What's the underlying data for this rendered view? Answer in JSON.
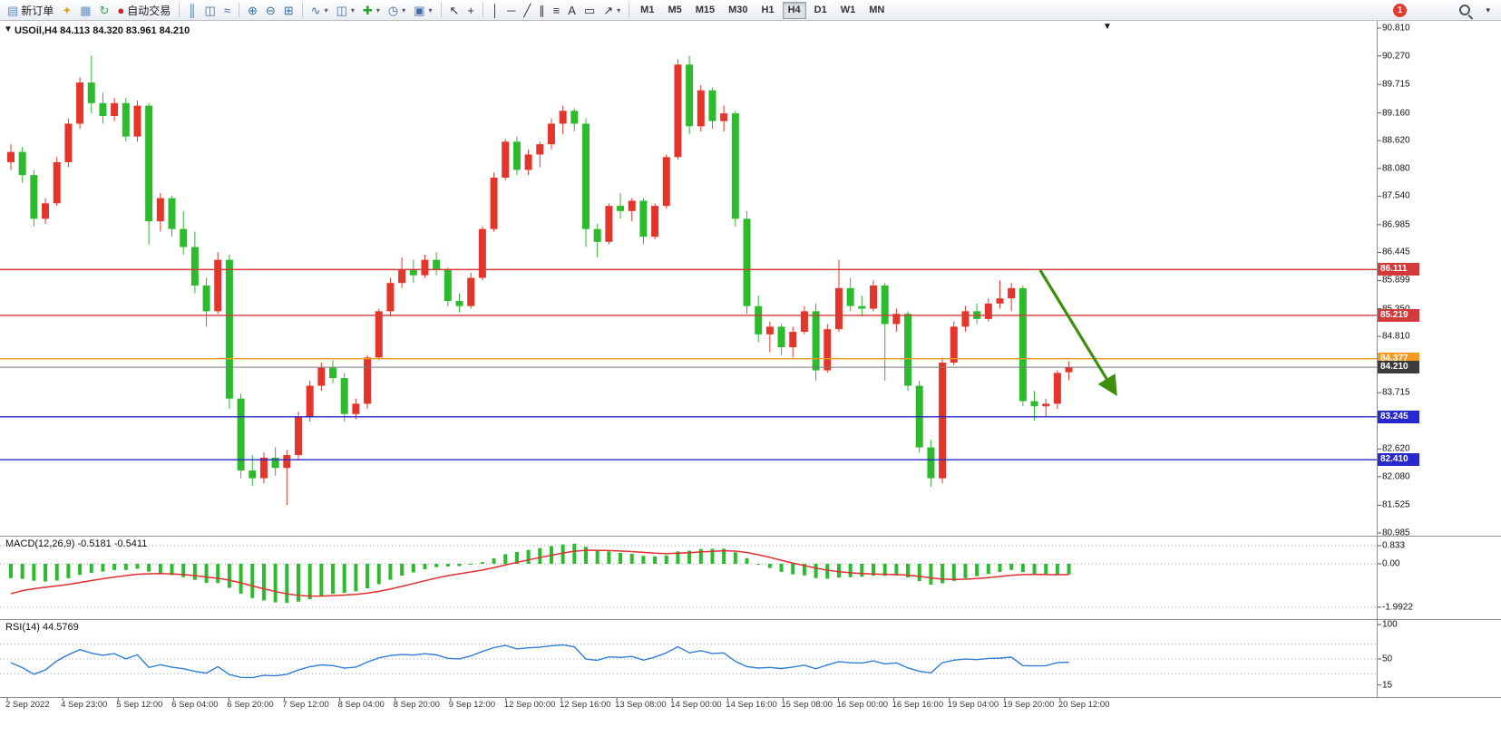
{
  "icons": {
    "dropdown_caret": "▾",
    "one_click": "▼",
    "shift_marker": "▼"
  },
  "toolbar": {
    "groups": [
      {
        "name": "trade-group",
        "items": [
          {
            "name": "new-order-button",
            "glyph": "▤",
            "glyph_color": "#5b8fd4",
            "label": "新订单"
          },
          {
            "name": "chart-window-icon-button",
            "glyph": "✦",
            "glyph_color": "#d9a62e"
          },
          {
            "name": "terminal-icon-button",
            "glyph": "▦",
            "glyph_color": "#5b8fd4"
          },
          {
            "name": "refresh-icon-button",
            "glyph": "↻",
            "glyph_color": "#3aa655"
          },
          {
            "name": "autotrading-button",
            "glyph": "●",
            "glyph_color": "#cc2222",
            "label": "自动交易"
          }
        ]
      },
      {
        "name": "chart-type-group",
        "items": [
          {
            "name": "bar-chart-button",
            "glyph": "║",
            "glyph_color": "#3a6ea5"
          },
          {
            "name": "candlestick-chart-button",
            "glyph": "◫",
            "glyph_color": "#3a6ea5"
          },
          {
            "name": "line-chart-button",
            "glyph": "≈",
            "glyph_color": "#3a6ea5"
          }
        ]
      },
      {
        "name": "zoom-group",
        "items": [
          {
            "name": "zoom-in-button",
            "glyph": "⊕",
            "glyph_color": "#3a6ea5"
          },
          {
            "name": "zoom-out-button",
            "glyph": "⊖",
            "glyph_color": "#3a6ea5"
          },
          {
            "name": "grid-button",
            "glyph": "⊞",
            "glyph_color": "#3a6ea5"
          }
        ]
      },
      {
        "name": "objects-group",
        "items": [
          {
            "name": "indicators-list-button",
            "glyph": "∿",
            "glyph_color": "#3a6ea5",
            "dropdown": true
          },
          {
            "name": "objects-list-button",
            "glyph": "◫",
            "glyph_color": "#3a6ea5",
            "dropdown": true
          },
          {
            "name": "add-indicator-button",
            "glyph": "✚",
            "glyph_color": "#2d9e2d",
            "dropdown": true
          },
          {
            "name": "periods-button",
            "glyph": "◷",
            "glyph_color": "#3a6ea5",
            "dropdown": true
          },
          {
            "name": "templates-button",
            "glyph": "▣",
            "glyph_color": "#3a6ea5",
            "dropdown": true
          }
        ]
      },
      {
        "name": "cursor-group",
        "items": [
          {
            "name": "cursor-button",
            "glyph": "↖",
            "glyph_color": "#333333"
          },
          {
            "name": "crosshair-button",
            "glyph": "+",
            "glyph_color": "#333333"
          }
        ]
      },
      {
        "name": "draw-group",
        "items": [
          {
            "name": "vertical-line-button",
            "glyph": "│",
            "glyph_color": "#333333"
          },
          {
            "name": "horizontal-line-button",
            "glyph": "─",
            "glyph_color": "#333333"
          },
          {
            "name": "trendline-button",
            "glyph": "╱",
            "glyph_color": "#333333"
          },
          {
            "name": "channel-button",
            "glyph": "∥",
            "glyph_color": "#333333"
          },
          {
            "name": "fibonacci-button",
            "glyph": "≡",
            "glyph_color": "#333333"
          },
          {
            "name": "text-button",
            "glyph": "A",
            "glyph_color": "#333333"
          },
          {
            "name": "shapes-button",
            "glyph": "▭",
            "glyph_color": "#333333"
          },
          {
            "name": "arrows-button",
            "glyph": "↗",
            "glyph_color": "#333333",
            "dropdown": true
          }
        ]
      }
    ],
    "timeframes": [
      "M1",
      "M5",
      "M15",
      "M30",
      "H1",
      "H4",
      "D1",
      "W1",
      "MN"
    ],
    "active_timeframe": "H4",
    "notification_badge": "1"
  },
  "chart": {
    "symbol_period": "USOil,H4",
    "ohlc_text": "84.113 84.320 83.961 84.210",
    "open": "84.113",
    "high": "84.320",
    "low": "83.961",
    "close": "84.210"
  },
  "chart_data": {
    "type": "candlestick",
    "title": "USOil,H4",
    "symbol": "USOil",
    "timeframe": "H4",
    "up_color": "#e5352a",
    "down_color": "#2cbb2c",
    "price_axis_labels": [
      "90.810",
      "90.270",
      "89.715",
      "89.160",
      "88.620",
      "88.080",
      "87.540",
      "86.985",
      "86.445",
      "85.899",
      "85.350",
      "84.810",
      "84.270",
      "83.715",
      "83.175",
      "82.620",
      "82.080",
      "81.525",
      "80.985"
    ],
    "time_labels": [
      "2 Sep 2022",
      "4 Sep 23:00",
      "5 Sep 12:00",
      "6 Sep 04:00",
      "6 Sep 20:00",
      "7 Sep 12:00",
      "8 Sep 04:00",
      "8 Sep 20:00",
      "9 Sep 12:00",
      "12 Sep 00:00",
      "12 Sep 16:00",
      "13 Sep 08:00",
      "14 Sep 00:00",
      "14 Sep 16:00",
      "15 Sep 08:00",
      "16 Sep 00:00",
      "16 Sep 16:00",
      "19 Sep 04:00",
      "19 Sep 20:00",
      "20 Sep 12:00"
    ],
    "candles": [
      [
        88.2,
        88.55,
        88.05,
        88.4
      ],
      [
        88.4,
        88.5,
        87.8,
        87.95
      ],
      [
        87.95,
        88.05,
        86.95,
        87.1
      ],
      [
        87.1,
        87.5,
        87.0,
        87.4
      ],
      [
        87.4,
        88.3,
        87.35,
        88.2
      ],
      [
        88.2,
        89.05,
        88.1,
        88.95
      ],
      [
        88.95,
        89.85,
        88.85,
        89.75
      ],
      [
        89.75,
        90.27,
        89.15,
        89.35
      ],
      [
        89.35,
        89.55,
        88.95,
        89.1
      ],
      [
        89.1,
        89.45,
        89.0,
        89.35
      ],
      [
        89.35,
        89.45,
        88.6,
        88.7
      ],
      [
        88.7,
        89.4,
        88.6,
        89.3
      ],
      [
        89.3,
        89.35,
        86.6,
        87.05
      ],
      [
        87.05,
        87.6,
        86.85,
        87.5
      ],
      [
        87.5,
        87.55,
        86.75,
        86.9
      ],
      [
        86.9,
        87.25,
        86.4,
        86.55
      ],
      [
        86.55,
        86.85,
        85.65,
        85.8
      ],
      [
        85.8,
        85.95,
        85.0,
        85.3
      ],
      [
        85.3,
        86.45,
        85.25,
        86.3
      ],
      [
        86.3,
        86.4,
        83.4,
        83.6
      ],
      [
        83.6,
        83.7,
        82.05,
        82.2
      ],
      [
        82.2,
        82.5,
        81.9,
        82.05
      ],
      [
        82.05,
        82.55,
        81.95,
        82.45
      ],
      [
        82.45,
        82.65,
        82.1,
        82.25
      ],
      [
        82.25,
        82.6,
        81.53,
        82.5
      ],
      [
        82.5,
        83.35,
        82.4,
        83.25
      ],
      [
        83.25,
        83.95,
        83.15,
        83.85
      ],
      [
        83.85,
        84.3,
        83.75,
        84.2
      ],
      [
        84.2,
        84.35,
        83.9,
        84.0
      ],
      [
        84.0,
        84.1,
        83.15,
        83.3
      ],
      [
        83.3,
        83.6,
        83.2,
        83.5
      ],
      [
        83.5,
        84.45,
        83.4,
        84.4
      ],
      [
        84.4,
        85.35,
        84.35,
        85.3
      ],
      [
        85.3,
        85.95,
        85.2,
        85.85
      ],
      [
        85.85,
        86.35,
        85.75,
        86.1
      ],
      [
        86.1,
        86.3,
        85.85,
        86.0
      ],
      [
        86.0,
        86.4,
        85.95,
        86.3
      ],
      [
        86.3,
        86.45,
        86.0,
        86.1
      ],
      [
        86.1,
        86.15,
        85.4,
        85.5
      ],
      [
        85.5,
        85.65,
        85.28,
        85.4
      ],
      [
        85.4,
        86.05,
        85.35,
        85.95
      ],
      [
        85.95,
        86.95,
        85.9,
        86.9
      ],
      [
        86.9,
        88.0,
        86.85,
        87.9
      ],
      [
        87.9,
        88.65,
        87.85,
        88.6
      ],
      [
        88.6,
        88.7,
        87.95,
        88.05
      ],
      [
        88.05,
        88.45,
        87.95,
        88.35
      ],
      [
        88.35,
        88.6,
        88.1,
        88.55
      ],
      [
        88.55,
        89.05,
        88.45,
        88.95
      ],
      [
        88.95,
        89.3,
        88.75,
        89.2
      ],
      [
        89.2,
        89.25,
        88.8,
        88.95
      ],
      [
        88.95,
        89.05,
        86.55,
        86.9
      ],
      [
        86.9,
        87.0,
        86.35,
        86.65
      ],
      [
        86.65,
        87.4,
        86.6,
        87.35
      ],
      [
        87.35,
        87.6,
        87.1,
        87.25
      ],
      [
        87.25,
        87.5,
        87.05,
        87.45
      ],
      [
        87.45,
        87.5,
        86.6,
        86.75
      ],
      [
        86.75,
        87.4,
        86.7,
        87.35
      ],
      [
        87.35,
        88.35,
        87.3,
        88.3
      ],
      [
        88.3,
        90.2,
        88.25,
        90.1
      ],
      [
        90.1,
        90.27,
        88.75,
        88.9
      ],
      [
        88.9,
        89.7,
        88.8,
        89.6
      ],
      [
        89.6,
        89.65,
        88.85,
        89.0
      ],
      [
        89.0,
        89.3,
        88.8,
        89.15
      ],
      [
        89.15,
        89.2,
        86.95,
        87.1
      ],
      [
        87.1,
        87.25,
        85.25,
        85.4
      ],
      [
        85.4,
        85.6,
        84.7,
        84.85
      ],
      [
        84.85,
        85.1,
        84.5,
        85.0
      ],
      [
        85.0,
        85.05,
        84.45,
        84.6
      ],
      [
        84.6,
        85.0,
        84.4,
        84.9
      ],
      [
        84.9,
        85.4,
        84.85,
        85.3
      ],
      [
        85.3,
        85.45,
        83.95,
        84.15
      ],
      [
        84.15,
        85.05,
        84.1,
        84.95
      ],
      [
        84.95,
        86.3,
        84.9,
        85.75
      ],
      [
        85.75,
        85.95,
        85.3,
        85.4
      ],
      [
        85.4,
        85.6,
        85.2,
        85.35
      ],
      [
        85.35,
        85.9,
        85.3,
        85.8
      ],
      [
        85.8,
        85.85,
        83.95,
        85.05
      ],
      [
        85.05,
        85.35,
        84.9,
        85.25
      ],
      [
        85.25,
        85.3,
        83.75,
        83.85
      ],
      [
        83.85,
        83.95,
        82.55,
        82.65
      ],
      [
        82.65,
        82.8,
        81.88,
        82.05
      ],
      [
        82.05,
        84.4,
        81.95,
        84.3
      ],
      [
        84.3,
        85.1,
        84.25,
        85.0
      ],
      [
        85.0,
        85.4,
        84.9,
        85.3
      ],
      [
        85.3,
        85.45,
        85.05,
        85.15
      ],
      [
        85.15,
        85.55,
        85.1,
        85.45
      ],
      [
        85.45,
        85.9,
        85.35,
        85.55
      ],
      [
        85.55,
        85.85,
        85.3,
        85.75
      ],
      [
        85.75,
        85.8,
        83.45,
        83.55
      ],
      [
        83.55,
        83.75,
        83.17,
        83.45
      ],
      [
        83.45,
        83.6,
        83.25,
        83.5
      ],
      [
        83.5,
        84.15,
        83.4,
        84.1
      ],
      [
        84.113,
        84.32,
        83.961,
        84.21
      ]
    ],
    "horizontal_lines": [
      {
        "price": 86.111,
        "label": "86.111",
        "color": "#d43a3a"
      },
      {
        "price": 85.219,
        "label": "85.219",
        "color": "#d43a3a"
      },
      {
        "price": 84.377,
        "label": "84.377",
        "color": "#f59a23"
      },
      {
        "price": 83.245,
        "label": "83.245",
        "color": "#2828cf"
      },
      {
        "price": 82.41,
        "label": "82.410",
        "color": "#2828cf"
      }
    ],
    "current_price": {
      "price": 84.21,
      "label": "84.210",
      "line_color": "#7a7a7a",
      "box_color": "#3c3c3c"
    },
    "annotations": [
      {
        "type": "arrow",
        "from_index": 89.5,
        "from_price": 86.1,
        "to_index": 96.0,
        "to_price": 83.72,
        "color": "#3f8f0f"
      }
    ]
  },
  "indicators": {
    "macd": {
      "label": "MACD(12,26,9)",
      "values_text": "-0.5181 -0.5411",
      "fast": 12,
      "slow": 26,
      "signal": 9,
      "axis_labels": [
        {
          "value": 0.833,
          "text": "0.833"
        },
        {
          "value": 0.0,
          "text": "0.00"
        },
        {
          "value": -1.9922,
          "text": "-1.9922"
        }
      ],
      "histogram_color": "#2cbb2c",
      "signal_color": "#e03030"
    },
    "rsi": {
      "label": "RSI(14)",
      "value_text": "44.5769",
      "period": 14,
      "axis_labels": [
        {
          "value": 100,
          "text": "100"
        },
        {
          "value": 50,
          "text": "50"
        },
        {
          "value": 15,
          "text": "15"
        }
      ],
      "levels": [
        70,
        50,
        30
      ],
      "line_color": "#2f7ed8"
    }
  }
}
